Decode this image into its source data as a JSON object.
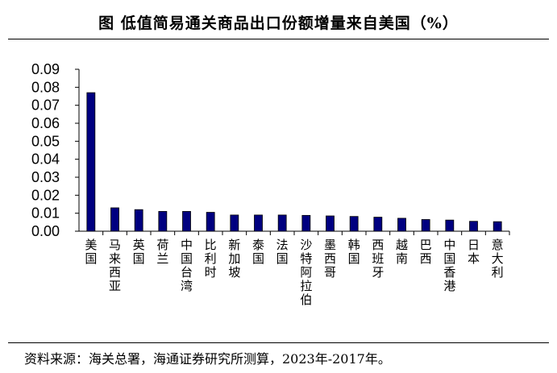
{
  "title": "图 低值简易通关商品出口份额增量来自美国（%）",
  "source": "资料来源：海关总署，海通证券研究所测算，2023年-2017年。",
  "colors": {
    "bar": "#000080",
    "bar_outline": "#000000",
    "axis": "#000000"
  },
  "chart_data": {
    "type": "bar",
    "title": "图 低值简易通关商品出口份额增量来自美国（%）",
    "xlabel": "",
    "ylabel": "",
    "ylim": [
      0,
      0.09
    ],
    "yticks": [
      "0.00",
      "0.01",
      "0.02",
      "0.03",
      "0.04",
      "0.05",
      "0.06",
      "0.07",
      "0.08",
      "0.09"
    ],
    "grid": false,
    "legend": "none",
    "categories": [
      "美国",
      "马来西亚",
      "英国",
      "荷兰",
      "中国台湾",
      "比利时",
      "新加坡",
      "泰国",
      "法国",
      "沙特阿拉伯",
      "墨西哥",
      "韩国",
      "西班牙",
      "越南",
      "巴西",
      "中国香港",
      "日本",
      "意大利"
    ],
    "values": [
      0.077,
      0.013,
      0.012,
      0.011,
      0.011,
      0.0105,
      0.009,
      0.009,
      0.009,
      0.0088,
      0.0085,
      0.0082,
      0.0078,
      0.0072,
      0.0065,
      0.0062,
      0.0055,
      0.0053
    ]
  }
}
